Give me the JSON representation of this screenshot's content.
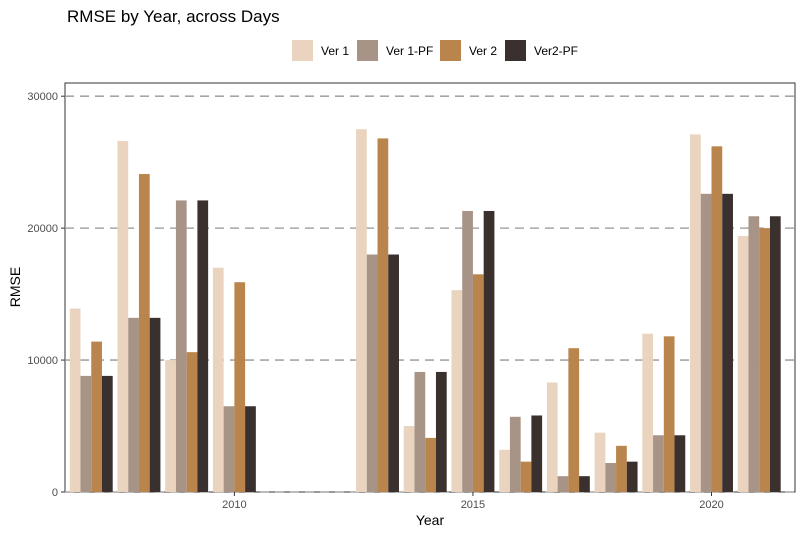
{
  "chart_data": {
    "type": "bar",
    "title": "RMSE by Year, across Days",
    "xlabel": "Year",
    "ylabel": "RMSE",
    "ylim": [
      0,
      31000
    ],
    "xlim": [
      2006.45,
      2021.75
    ],
    "yticks": [
      0,
      10000,
      20000,
      30000
    ],
    "ytick_labels": [
      "0",
      "10000",
      "20000",
      "30000"
    ],
    "xticks": [
      2010,
      2015,
      2020
    ],
    "xtick_labels": [
      "2010",
      "2015",
      "2020"
    ],
    "grid": "major y dashed",
    "legend_position": "top",
    "x": [
      2007,
      2008,
      2009,
      2010,
      2013,
      2014,
      2015,
      2016,
      2017,
      2018,
      2019,
      2020,
      2021
    ],
    "series": [
      {
        "name": "Ver 1",
        "color": "#ead4c0",
        "values": [
          13900,
          26600,
          10000,
          17000,
          27500,
          5000,
          15300,
          3200,
          8300,
          4500,
          12000,
          27100,
          19400
        ]
      },
      {
        "name": "Ver 1-PF",
        "color": "#a89487",
        "values": [
          8800,
          13200,
          22100,
          6500,
          18000,
          9100,
          21300,
          5700,
          1200,
          2200,
          4300,
          22600,
          20900
        ]
      },
      {
        "name": "Ver 2",
        "color": "#b9854d",
        "values": [
          11400,
          24100,
          10600,
          15900,
          26800,
          4100,
          16500,
          2300,
          10900,
          3500,
          11800,
          26200,
          20000
        ]
      },
      {
        "name": "Ver2-PF",
        "color": "#3a302e",
        "values": [
          8800,
          13200,
          22100,
          6500,
          18000,
          9100,
          21300,
          5800,
          1200,
          2300,
          4300,
          22600,
          20900
        ]
      }
    ]
  }
}
